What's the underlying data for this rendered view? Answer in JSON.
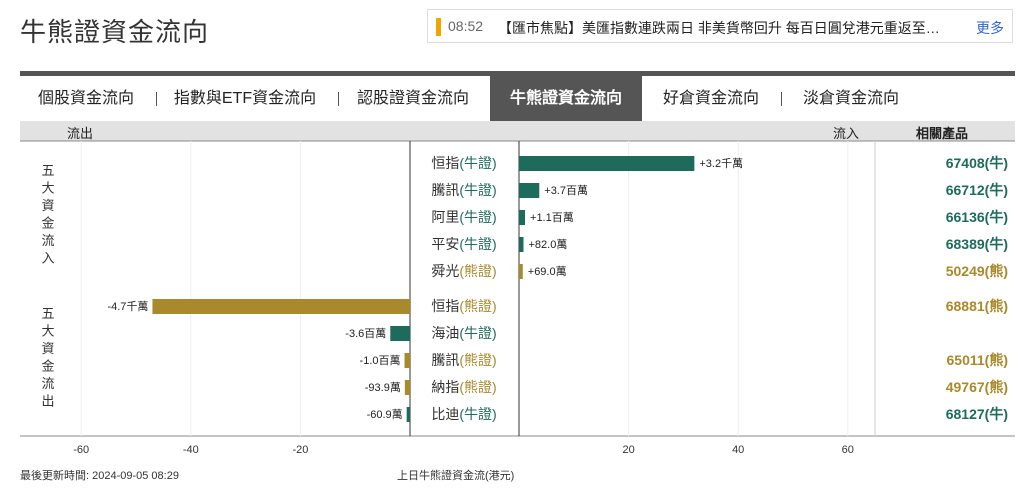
{
  "header": {
    "title": "牛熊證資金流向",
    "ticker_time": "08:52",
    "ticker_text": "【匯市焦點】美匯指數連跌兩日 非美貨幣回升 每百日圓兌港元重返至…",
    "more_label": "更多"
  },
  "tabs": [
    {
      "label": "個股資金流向"
    },
    {
      "label": "指數與ETF資金流向"
    },
    {
      "label": "認股證資金流向"
    },
    {
      "label": "牛熊證資金流向",
      "active": true
    },
    {
      "label": "好倉資金流向"
    },
    {
      "label": "淡倉資金流向"
    }
  ],
  "table_header": {
    "outflow": "流出",
    "inflow": "流入",
    "products": "相關產品"
  },
  "groups": {
    "inflow": "五大資金流入",
    "outflow": "五大資金流出"
  },
  "colors": {
    "bull": "#1e6b5c",
    "bear": "#a8892b"
  },
  "chart_data": {
    "type": "bar",
    "orientation": "horizontal",
    "xlabel": "上日牛熊證資金流(港元)",
    "xlim": [
      -65,
      65
    ],
    "xticks": [
      -60,
      -40,
      -20,
      20,
      40,
      60
    ],
    "unit_scale": "百萬",
    "series": [
      {
        "group": "inflow",
        "name": "恒指",
        "type": "牛證",
        "kind": "bull",
        "value": 32,
        "label": "+3.2千萬",
        "product": "67408",
        "product_type": "牛"
      },
      {
        "group": "inflow",
        "name": "騰訊",
        "type": "牛證",
        "kind": "bull",
        "value": 3.7,
        "label": "+3.7百萬",
        "product": "66712",
        "product_type": "牛"
      },
      {
        "group": "inflow",
        "name": "阿里",
        "type": "牛證",
        "kind": "bull",
        "value": 1.1,
        "label": "+1.1百萬",
        "product": "66136",
        "product_type": "牛"
      },
      {
        "group": "inflow",
        "name": "平安",
        "type": "牛證",
        "kind": "bull",
        "value": 0.82,
        "label": "+82.0萬",
        "product": "68389",
        "product_type": "牛"
      },
      {
        "group": "inflow",
        "name": "舜光",
        "type": "熊證",
        "kind": "bear",
        "value": 0.69,
        "label": "+69.0萬",
        "product": "50249",
        "product_type": "熊"
      },
      {
        "group": "outflow",
        "name": "恒指",
        "type": "熊證",
        "kind": "bear",
        "value": -47,
        "label": "-4.7千萬",
        "product": "68881",
        "product_type": "熊"
      },
      {
        "group": "outflow",
        "name": "海油",
        "type": "牛證",
        "kind": "bull",
        "value": -3.6,
        "label": "-3.6百萬",
        "product": "",
        "product_type": ""
      },
      {
        "group": "outflow",
        "name": "騰訊",
        "type": "熊證",
        "kind": "bear",
        "value": -1.0,
        "label": "-1.0百萬",
        "product": "65011",
        "product_type": "熊"
      },
      {
        "group": "outflow",
        "name": "納指",
        "type": "熊證",
        "kind": "bear",
        "value": -0.939,
        "label": "-93.9萬",
        "product": "49767",
        "product_type": "熊"
      },
      {
        "group": "outflow",
        "name": "比迪",
        "type": "牛證",
        "kind": "bull",
        "value": -0.609,
        "label": "-60.9萬",
        "product": "68127",
        "product_type": "牛"
      }
    ]
  },
  "footer": {
    "updated": "最後更新時間: 2024-09-05 08:29"
  }
}
